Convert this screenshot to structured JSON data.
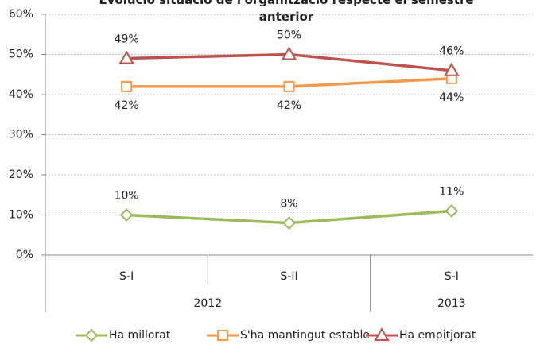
{
  "chart_data": {
    "type": "line",
    "title": "Evolució situació de l'organització respecte el semestre anterior",
    "categories": [
      "S-I",
      "S-II",
      "S-I"
    ],
    "groups": [
      {
        "name": "2012",
        "count": 2
      },
      {
        "name": "2013",
        "count": 1
      }
    ],
    "series": [
      {
        "name": "Ha millorat",
        "color": "#9bbb59",
        "marker": "diamond",
        "label_position": "above",
        "values": [
          10,
          8,
          11
        ],
        "value_labels": [
          "10%",
          "8%",
          "11%"
        ]
      },
      {
        "name": "S'ha mantingut estable",
        "color": "#f79646",
        "marker": "square",
        "label_position": "below",
        "values": [
          42,
          42,
          44
        ],
        "value_labels": [
          "42%",
          "42%",
          "44%"
        ]
      },
      {
        "name": "Ha empitjorat",
        "color": "#c0504d",
        "marker": "triangle",
        "label_position": "above",
        "values": [
          49,
          50,
          46
        ],
        "value_labels": [
          "49%",
          "50%",
          "46%"
        ]
      }
    ],
    "ylim": [
      0,
      60
    ],
    "yticks": [
      {
        "value": 0,
        "label": "0%"
      },
      {
        "value": 10,
        "label": "10%"
      },
      {
        "value": 20,
        "label": "20%"
      },
      {
        "value": 30,
        "label": "30%"
      },
      {
        "value": 40,
        "label": "40%"
      },
      {
        "value": 50,
        "label": "50%"
      },
      {
        "value": 60,
        "label": "60%"
      }
    ],
    "grid": true,
    "legend": "bottom"
  }
}
